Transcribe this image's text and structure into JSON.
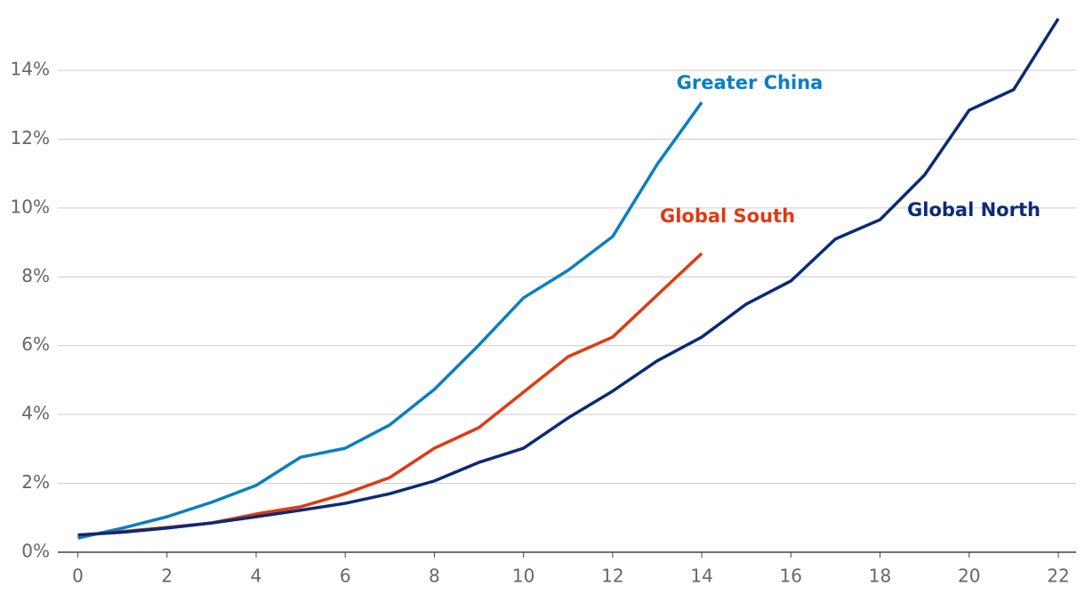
{
  "chart_data": {
    "type": "line",
    "x": [
      0,
      1,
      2,
      3,
      4,
      5,
      6,
      7,
      8,
      9,
      10,
      11,
      12,
      13,
      14,
      15,
      16,
      17,
      18,
      19,
      20,
      21,
      22
    ],
    "series": [
      {
        "name": "Greater China",
        "color": "#0a7fc2",
        "values": [
          0.41,
          0.7,
          1.03,
          1.45,
          1.94,
          2.76,
          3.02,
          3.7,
          4.73,
          6.02,
          7.39,
          8.19,
          9.17,
          11.27,
          13.07,
          null,
          null,
          null,
          null,
          null,
          null,
          null,
          null
        ]
      },
      {
        "name": "Global South",
        "color": "#e03a12",
        "values": [
          0.49,
          0.6,
          0.72,
          0.85,
          1.11,
          1.32,
          1.7,
          2.17,
          3.02,
          3.62,
          4.65,
          5.68,
          6.25,
          7.47,
          8.68,
          null,
          null,
          null,
          null,
          null,
          null,
          null,
          null
        ]
      },
      {
        "name": "Global North",
        "color": "#0b2a78",
        "values": [
          0.5,
          0.58,
          0.7,
          0.85,
          1.03,
          1.22,
          1.42,
          1.7,
          2.07,
          2.61,
          3.02,
          3.9,
          4.68,
          5.56,
          6.25,
          7.21,
          7.88,
          9.1,
          9.66,
          10.96,
          12.84,
          13.44,
          15.5
        ]
      }
    ],
    "xlim": [
      -0.45,
      22.4
    ],
    "xticks": [
      0,
      2,
      4,
      6,
      8,
      10,
      12,
      14,
      16,
      18,
      20,
      22
    ],
    "ylim": [
      0,
      15.5
    ],
    "yticks": [
      {
        "value": 0,
        "label": "0%"
      },
      {
        "value": 2,
        "label": "2%"
      },
      {
        "value": 4,
        "label": "4%"
      },
      {
        "value": 6,
        "label": "6%"
      },
      {
        "value": 8,
        "label": "8%"
      },
      {
        "value": 10,
        "label": "10%"
      },
      {
        "value": 12,
        "label": "12%"
      },
      {
        "value": 14,
        "label": "14%"
      }
    ],
    "grid": true
  }
}
